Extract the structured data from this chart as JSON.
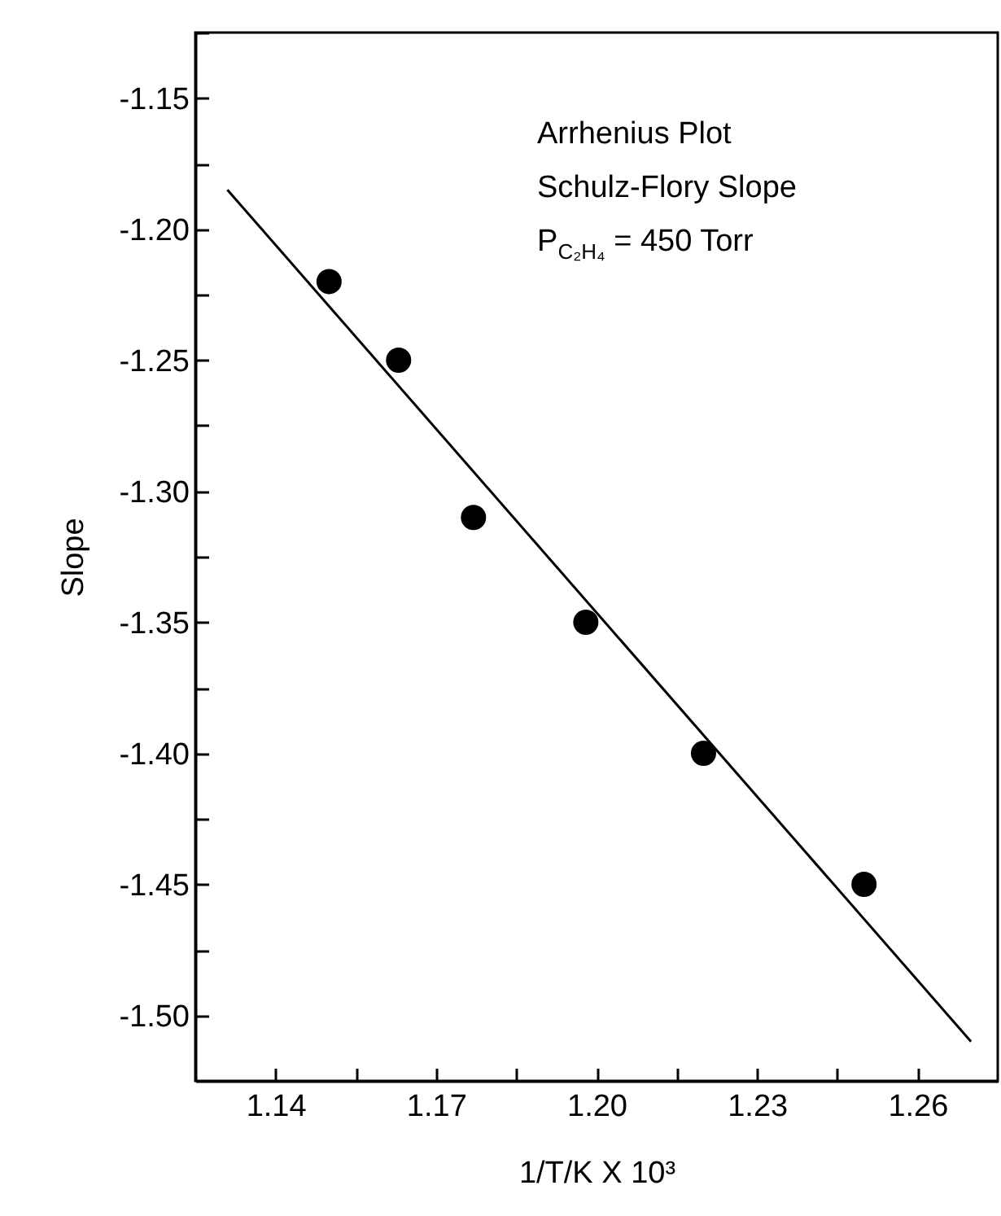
{
  "chart_data": {
    "type": "scatter",
    "xlabel": "1/T/K X 10³",
    "ylabel": "Slope",
    "annotations": [
      "Arrhenius Plot",
      "Schulz-Flory Slope",
      "P$_{C₂H₄}$ = 450 Torr"
    ],
    "xlim": [
      1.125,
      1.275
    ],
    "ylim": [
      -1.525,
      -1.125
    ],
    "xticks": [
      1.14,
      {
        "value": 1.155,
        "label": null
      },
      1.17,
      {
        "value": 1.185,
        "label": null
      },
      {
        "value": 1.2,
        "label": "1.20"
      },
      {
        "value": 1.215,
        "label": null
      },
      1.23,
      {
        "value": 1.245,
        "label": null
      },
      1.26
    ],
    "yticks": [
      {
        "value": -1.5,
        "label": "-1.50"
      },
      {
        "value": -1.475,
        "label": null
      },
      -1.45,
      {
        "value": -1.425,
        "label": null
      },
      {
        "value": -1.4,
        "label": "-1.40"
      },
      {
        "value": -1.375,
        "label": null
      },
      -1.35,
      {
        "value": -1.325,
        "label": null
      },
      {
        "value": -1.3,
        "label": "-1.30"
      },
      {
        "value": -1.275,
        "label": null
      },
      -1.25,
      {
        "value": -1.225,
        "label": null
      },
      {
        "value": -1.2,
        "label": "-1.20"
      },
      {
        "value": -1.175,
        "label": null
      },
      -1.15,
      {
        "value": -1.125,
        "label": null
      }
    ],
    "marker": "circle",
    "grid": false,
    "series": [
      {
        "color": "#000000",
        "x": [
          1.15,
          1.163,
          1.177,
          1.198,
          1.22,
          1.25
        ],
        "values": [
          -1.22,
          -1.25,
          -1.31,
          -1.35,
          -1.4,
          -1.45
        ]
      },
      {
        "type": "line",
        "color": "#000000",
        "marker": "none",
        "x": [
          1.131,
          1.27
        ],
        "values": [
          -1.185,
          -1.51
        ]
      }
    ]
  }
}
